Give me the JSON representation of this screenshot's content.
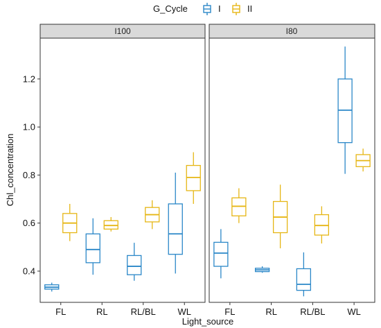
{
  "chart_data": {
    "type": "boxplot",
    "xlabel": "Light_source",
    "ylabel": "Chl_concentration",
    "ylim": [
      0.27,
      1.37
    ],
    "yticks": [
      0.4,
      0.6,
      0.8,
      1.0,
      1.2
    ],
    "ytick_labels": [
      "0.4",
      "0.6",
      "0.8",
      "1.0",
      "1.2"
    ],
    "categories": [
      "FL",
      "RL",
      "RL/BL",
      "WL"
    ],
    "grid": false,
    "legend": {
      "title": "G_Cycle",
      "position": "top",
      "entries": [
        "I",
        "II"
      ]
    },
    "colors": {
      "I": "#2a87c8",
      "II": "#e6b614"
    },
    "panels": [
      {
        "title": "I100",
        "series": [
          {
            "group": "I",
            "boxes": [
              {
                "category": "FL",
                "min": 0.315,
                "q1": 0.325,
                "median": 0.333,
                "q3": 0.343,
                "max": 0.352
              },
              {
                "category": "RL",
                "min": 0.385,
                "q1": 0.435,
                "median": 0.49,
                "q3": 0.555,
                "max": 0.62
              },
              {
                "category": "RL/BL",
                "min": 0.36,
                "q1": 0.385,
                "median": 0.42,
                "q3": 0.465,
                "max": 0.518
              },
              {
                "category": "WL",
                "min": 0.39,
                "q1": 0.47,
                "median": 0.555,
                "q3": 0.68,
                "max": 0.81
              }
            ]
          },
          {
            "group": "II",
            "boxes": [
              {
                "category": "FL",
                "min": 0.525,
                "q1": 0.56,
                "median": 0.6,
                "q3": 0.64,
                "max": 0.68
              },
              {
                "category": "RL",
                "min": 0.565,
                "q1": 0.575,
                "median": 0.59,
                "q3": 0.61,
                "max": 0.625
              },
              {
                "category": "RL/BL",
                "min": 0.575,
                "q1": 0.605,
                "median": 0.635,
                "q3": 0.665,
                "max": 0.695
              },
              {
                "category": "WL",
                "min": 0.68,
                "q1": 0.735,
                "median": 0.79,
                "q3": 0.84,
                "max": 0.895
              }
            ]
          }
        ]
      },
      {
        "title": "I80",
        "series": [
          {
            "group": "I",
            "boxes": [
              {
                "category": "FL",
                "min": 0.37,
                "q1": 0.42,
                "median": 0.475,
                "q3": 0.52,
                "max": 0.575
              },
              {
                "category": "RL",
                "min": 0.393,
                "q1": 0.398,
                "median": 0.405,
                "q3": 0.412,
                "max": 0.42
              },
              {
                "category": "RL/BL",
                "min": 0.295,
                "q1": 0.32,
                "median": 0.345,
                "q3": 0.41,
                "max": 0.478
              },
              {
                "category": "WL",
                "min": 0.805,
                "q1": 0.935,
                "median": 1.07,
                "q3": 1.2,
                "max": 1.335
              }
            ]
          },
          {
            "group": "II",
            "boxes": [
              {
                "category": "FL",
                "min": 0.6,
                "q1": 0.63,
                "median": 0.67,
                "q3": 0.705,
                "max": 0.745
              },
              {
                "category": "RL",
                "min": 0.495,
                "q1": 0.56,
                "median": 0.625,
                "q3": 0.69,
                "max": 0.76
              },
              {
                "category": "RL/BL",
                "min": 0.515,
                "q1": 0.55,
                "median": 0.59,
                "q3": 0.635,
                "max": 0.67
              },
              {
                "category": "WL",
                "min": 0.815,
                "q1": 0.835,
                "median": 0.86,
                "q3": 0.885,
                "max": 0.91
              }
            ]
          }
        ]
      }
    ]
  }
}
